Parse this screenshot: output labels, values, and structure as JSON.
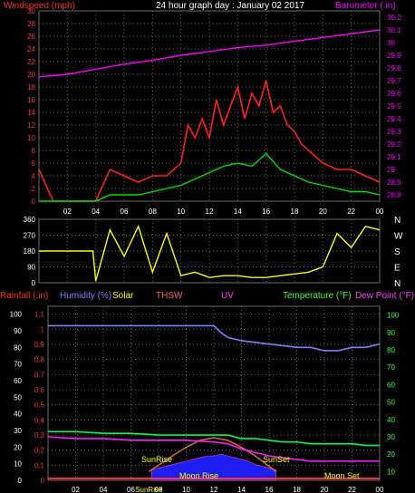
{
  "colors": {
    "wind": "#ff2020",
    "gust": "#ff2020",
    "wind_avg": "#00e000",
    "barometer": "#ff00ff",
    "direction": "#ffff00",
    "humidity": "#8080ff",
    "temperature": "#00ff40",
    "dewpoint": "#ff20ff",
    "rain": "#ff3030",
    "solar": "#ffff00",
    "thsw": "#ff6060",
    "uv": "#ff40ff",
    "sun_arc": "#d07030",
    "solar_fill": "#2020ff",
    "grid": "#6a6a6a",
    "axis_left": "#ff3030",
    "axis_right_baro": "#ff00ff",
    "axis_right_temp": "#40ff40",
    "text_white": "#ffffff",
    "annotation": "#ffff00"
  },
  "chart_data": [
    {
      "type": "line",
      "title": "24 hour graph day : January 02 2017",
      "left_label": "Windspeed (mph)",
      "right_label": "Barometer (.in)",
      "x_ticks": [
        "02",
        "04",
        "06",
        "08",
        "10",
        "12",
        "14",
        "16",
        "18",
        "20",
        "22",
        "00"
      ],
      "y_left_ticks": [
        "0",
        "2",
        "4",
        "6",
        "8",
        "10",
        "12",
        "14",
        "16",
        "18",
        "20",
        "22",
        "24",
        "26",
        "28",
        "30"
      ],
      "y_left_range": [
        0,
        30
      ],
      "y_right_ticks": [
        "28.8",
        "28.9",
        "29",
        "29.1",
        "29.2",
        "29.3",
        "29.4",
        "29.5",
        "29.6",
        "29.7",
        "29.8",
        "29.9",
        "30",
        "30.1",
        "30.2"
      ],
      "y_right_range": [
        28.75,
        30.25
      ],
      "x_range": [
        0,
        24
      ],
      "grid": true,
      "series": [
        {
          "key": "barometer",
          "axis": "right",
          "x": [
            0,
            2,
            4,
            6,
            8,
            10,
            12,
            14,
            16,
            18,
            20,
            22,
            24
          ],
          "values": [
            29.73,
            29.75,
            29.79,
            29.83,
            29.86,
            29.9,
            29.93,
            29.96,
            29.98,
            30.01,
            30.04,
            30.07,
            30.1
          ]
        },
        {
          "key": "gust",
          "axis": "left",
          "x": [
            0,
            1,
            2,
            3,
            4,
            5,
            6,
            7,
            8,
            9,
            10,
            10.5,
            11,
            11.5,
            12,
            12.5,
            13,
            13.5,
            14,
            14.5,
            15,
            15.5,
            16,
            16.5,
            17,
            17.5,
            18,
            18.5,
            19,
            20,
            21,
            22,
            23,
            24
          ],
          "values": [
            5,
            0,
            0,
            0,
            0,
            5,
            4,
            3,
            4,
            4,
            6,
            12,
            10,
            13,
            10,
            16,
            12,
            15,
            18,
            13,
            17,
            15,
            19,
            14,
            15,
            12,
            11,
            9,
            8,
            6,
            5,
            5,
            4,
            3
          ]
        },
        {
          "key": "wind_avg",
          "axis": "left",
          "x": [
            0,
            1,
            2,
            3,
            4,
            5,
            6,
            7,
            8,
            9,
            10,
            11,
            12,
            13,
            14,
            15,
            16,
            17,
            18,
            19,
            20,
            21,
            22,
            23,
            24
          ],
          "values": [
            0,
            0,
            0,
            0,
            0,
            1,
            1,
            1,
            1.5,
            2,
            2.5,
            3.5,
            4.5,
            5.5,
            6,
            5.5,
            7.5,
            5,
            4,
            3,
            2.5,
            2,
            1.5,
            1.5,
            1
          ]
        }
      ]
    },
    {
      "type": "line",
      "x_ticks": [],
      "y_left_ticks": [
        "0",
        "90",
        "180",
        "270",
        "360"
      ],
      "y_left_range": [
        0,
        360
      ],
      "right_labels": [
        "N",
        "W",
        "S",
        "E",
        "N"
      ],
      "x_range": [
        0,
        24
      ],
      "series": [
        {
          "key": "direction",
          "x": [
            0,
            3,
            3.8,
            4,
            5,
            6,
            7,
            8,
            9,
            10,
            11,
            12,
            13,
            14,
            15,
            16,
            17,
            18,
            19,
            20,
            21,
            22,
            23,
            24
          ],
          "values": [
            180,
            180,
            180,
            10,
            300,
            150,
            320,
            60,
            280,
            40,
            60,
            30,
            40,
            40,
            30,
            30,
            40,
            50,
            60,
            90,
            280,
            200,
            320,
            300
          ]
        }
      ]
    },
    {
      "type": "line",
      "x_ticks": [
        "02",
        "04",
        "06",
        "08",
        "10",
        "12",
        "14",
        "16",
        "18",
        "20",
        "22",
        "00"
      ],
      "y_left_outer_ticks": [
        "0",
        "10",
        "20",
        "30",
        "40",
        "50",
        "60",
        "70",
        "80",
        "90",
        "100"
      ],
      "y_left_inner_ticks": [
        "0",
        "0.1",
        "0.2",
        "0.3",
        "0.4",
        "0.5",
        "0.6",
        "0.7",
        "0.8",
        "0.9",
        "1",
        "1.1"
      ],
      "y_right_ticks": [
        "10",
        "20",
        "30",
        "40",
        "50",
        "60",
        "70",
        "80",
        "90",
        "100"
      ],
      "y_right_range": [
        5,
        105
      ],
      "x_range": [
        0,
        24
      ],
      "legend": [
        "Rainfall (.in)",
        "Humidity (%)",
        "Solar",
        "THSW",
        "UV",
        "Temperature (°F)",
        "Dew Point (°F)"
      ],
      "annotations": {
        "sunrise": "SunRise",
        "sunset": "SunSet",
        "moonrise": "Moon Rise",
        "moonset": "Moon Set",
        "sunrise_axis": "SunRise",
        "sunrise_axis_x": 7.3
      },
      "series": [
        {
          "key": "humidity",
          "unit": "%",
          "x": [
            0,
            2,
            4,
            6,
            8,
            10,
            11,
            12,
            12.5,
            13,
            14,
            15,
            16,
            17,
            18,
            19,
            20,
            21,
            22,
            23,
            24
          ],
          "values": [
            93,
            93,
            93,
            93,
            93,
            93,
            93,
            93,
            89,
            86,
            84,
            83,
            82,
            81,
            80,
            80,
            78,
            78,
            80,
            80,
            82
          ]
        },
        {
          "key": "temperature",
          "unit": "F",
          "x": [
            0,
            2,
            4,
            6,
            8,
            10,
            12,
            13,
            14,
            15,
            16,
            17,
            18,
            19,
            20,
            21,
            22,
            23,
            24
          ],
          "values": [
            33,
            33,
            32,
            32,
            31,
            31,
            31,
            31,
            29,
            29,
            28,
            27,
            27,
            26,
            26,
            26,
            26,
            25,
            25
          ]
        },
        {
          "key": "dewpoint",
          "unit": "F",
          "x": [
            0,
            2,
            4,
            6,
            8,
            10,
            12,
            13,
            14,
            15,
            16,
            17,
            18,
            19,
            20,
            21,
            22,
            23,
            24
          ],
          "values": [
            30,
            29,
            29,
            28,
            28,
            28,
            27,
            26,
            23,
            21,
            19,
            18,
            17,
            16,
            16,
            16,
            16,
            16,
            16
          ]
        },
        {
          "key": "rain",
          "unit": "in",
          "x": [
            0,
            24
          ],
          "values": [
            0,
            0
          ]
        },
        {
          "key": "sun_arc",
          "unit": "F",
          "x": [
            7.3,
            9,
            10,
            11,
            12,
            13,
            14,
            15,
            16.5
          ],
          "values": [
            10,
            19,
            24,
            28,
            29.5,
            28,
            24,
            19,
            10
          ]
        },
        {
          "key": "solar",
          "unit": "F",
          "x": [
            7.5,
            8,
            9,
            9.5,
            10,
            10.5,
            11,
            11.5,
            12,
            12.5,
            13,
            13.5,
            14,
            14.5,
            15,
            15.5,
            16,
            16.5
          ],
          "values": [
            11,
            12,
            14,
            15,
            16,
            17,
            18,
            19,
            19,
            20,
            19,
            18,
            17,
            16,
            14,
            13,
            12,
            11
          ]
        }
      ]
    }
  ]
}
